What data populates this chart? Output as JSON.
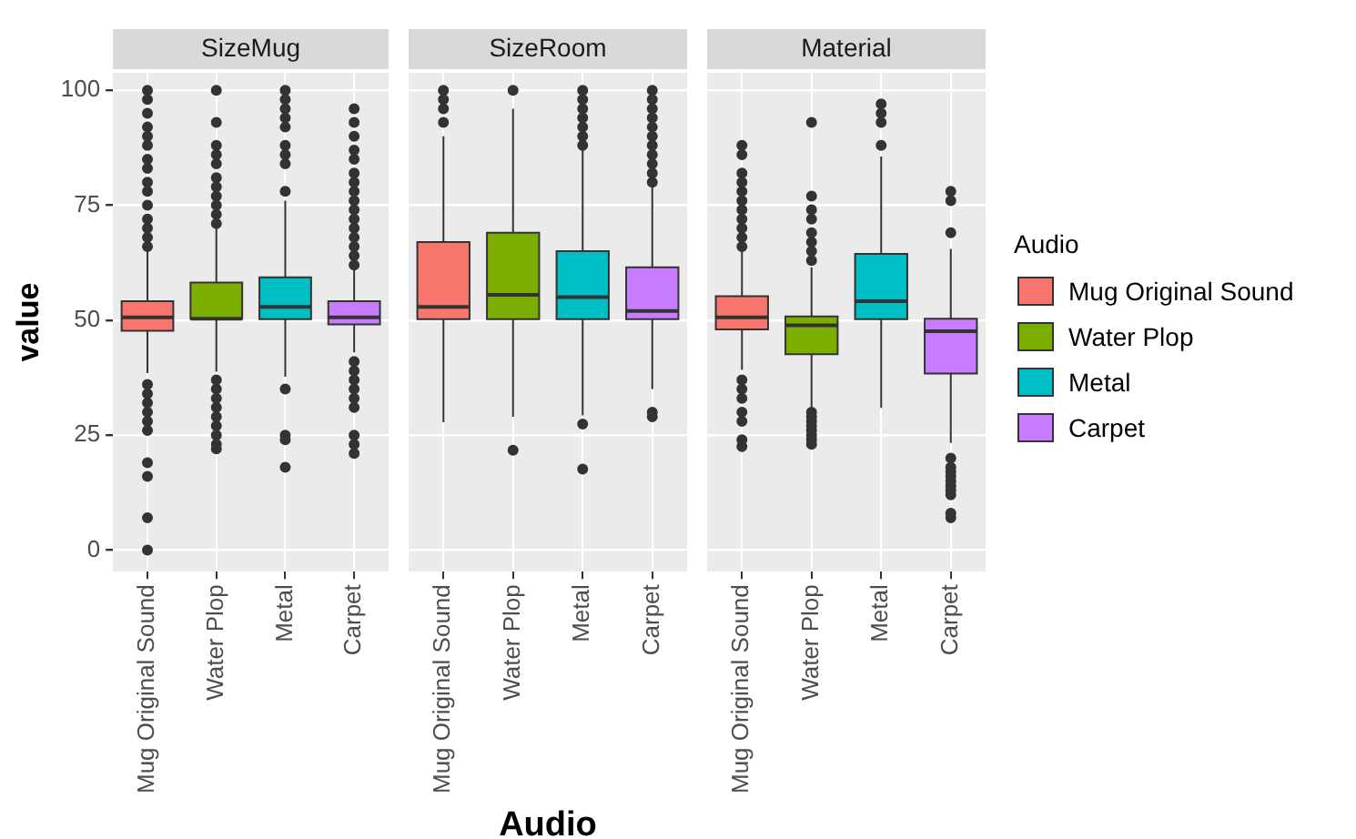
{
  "chart_data": [
    {
      "type": "box",
      "title": "SizeMug",
      "ylabel": "value",
      "categories": [
        "Mug Original Sound",
        "Water Plop",
        "Metal",
        "Carpet"
      ],
      "ylim": [
        -4.7,
        103.8
      ],
      "yticks": [
        0,
        25,
        50,
        75,
        100
      ],
      "grid": true,
      "legend": false,
      "series": [
        {
          "color": "#f8766d",
          "boxes": [
            {
              "low": 38.5,
              "q1": 47.7,
              "median": 50.6,
              "q3": 54.1,
              "high": 65,
              "outliers": [
                100,
                98,
                95,
                92,
                90,
                88,
                85,
                83,
                80,
                78,
                75,
                72,
                70,
                68,
                66,
                36,
                34,
                32,
                30,
                28,
                26,
                19,
                16,
                7,
                0
              ]
            },
            null,
            null,
            null
          ]
        },
        {
          "color": "#7cae00",
          "boxes": [
            null,
            {
              "low": 38.8,
              "q1": 50.3,
              "median": 50.3,
              "q3": 58.2,
              "high": 70,
              "outliers": [
                100,
                93,
                88,
                86,
                84,
                81,
                79,
                77,
                75,
                73,
                71,
                37,
                35,
                33,
                31,
                29,
                27,
                25,
                23,
                22
              ]
            },
            null,
            null
          ]
        },
        {
          "color": "#00bfc4",
          "boxes": [
            null,
            null,
            {
              "low": 37.7,
              "q1": 50.2,
              "median": 52.9,
              "q3": 59.3,
              "high": 76,
              "outliers": [
                100,
                98,
                96,
                94,
                92,
                88,
                86,
                84,
                78,
                35,
                25,
                24,
                18
              ]
            },
            null
          ]
        },
        {
          "color": "#c77cff",
          "boxes": [
            null,
            null,
            null,
            {
              "low": 43,
              "q1": 49.1,
              "median": 50.6,
              "q3": 54.1,
              "high": 61,
              "outliers": [
                96,
                93,
                90,
                87,
                85,
                82,
                80,
                78,
                76,
                74,
                72,
                70,
                68,
                66,
                64,
                62,
                41,
                39,
                37,
                35,
                33,
                31,
                25,
                23,
                21
              ]
            }
          ]
        }
      ]
    },
    {
      "type": "box",
      "title": "SizeRoom",
      "xlabel": "Audio",
      "categories": [
        "Mug Original Sound",
        "Water Plop",
        "Metal",
        "Carpet"
      ],
      "ylim": [
        -4.7,
        103.8
      ],
      "yticks": [
        0,
        25,
        50,
        75,
        100
      ],
      "grid": true,
      "legend": false,
      "tick_labels": "x",
      "series": [
        {
          "color": "#f8766d",
          "boxes": [
            {
              "low": 27.8,
              "q1": 50.2,
              "median": 52.9,
              "q3": 67,
              "high": 90,
              "outliers": [
                100,
                98,
                96,
                93
              ]
            },
            null,
            null,
            null
          ]
        },
        {
          "color": "#7cae00",
          "boxes": [
            null,
            {
              "low": 29,
              "q1": 50.2,
              "median": 55.5,
              "q3": 69,
              "high": 96,
              "outliers": [
                100,
                21.7
              ]
            },
            null,
            null
          ]
        },
        {
          "color": "#00bfc4",
          "boxes": [
            null,
            null,
            {
              "low": 29.3,
              "q1": 50.2,
              "median": 55,
              "q3": 65,
              "high": 87,
              "outliers": [
                100,
                98,
                96,
                94,
                92,
                90,
                88,
                27.4,
                17.6
              ]
            },
            null
          ]
        },
        {
          "color": "#c77cff",
          "boxes": [
            null,
            null,
            null,
            {
              "low": 35,
              "q1": 50.2,
              "median": 52,
              "q3": 61.5,
              "high": 79,
              "outliers": [
                100,
                98,
                96,
                94,
                92,
                90,
                88,
                86,
                84,
                82,
                80,
                30,
                29
              ]
            }
          ]
        }
      ]
    },
    {
      "type": "box",
      "title": "Material",
      "legend_title": "Audio",
      "categories": [
        "Mug Original Sound",
        "Water Plop",
        "Metal",
        "Carpet"
      ],
      "ylim": [
        -4.7,
        103.8
      ],
      "yticks": [
        0,
        25,
        50,
        75,
        100
      ],
      "grid": true,
      "legend": "right",
      "tick_labels": "x",
      "series": [
        {
          "name": "Mug Original Sound",
          "color": "#f8766d",
          "boxes": [
            {
              "low": 39.2,
              "q1": 48,
              "median": 50.6,
              "q3": 55.2,
              "high": 65,
              "outliers": [
                88,
                86,
                82,
                80,
                78,
                76,
                74,
                72,
                70,
                68,
                66,
                37,
                35,
                33,
                30,
                28,
                24,
                22.5
              ]
            },
            null,
            null,
            null
          ]
        },
        {
          "name": "Water Plop",
          "color": "#7cae00",
          "boxes": [
            null,
            {
              "low": 31,
              "q1": 42.6,
              "median": 48.9,
              "q3": 50.8,
              "high": 61.5,
              "outliers": [
                93,
                77,
                74,
                72,
                69,
                67,
                65,
                63,
                30,
                29,
                28,
                27,
                26,
                25,
                24,
                23
              ]
            },
            null,
            null
          ]
        },
        {
          "name": "Metal",
          "color": "#00bfc4",
          "boxes": [
            null,
            null,
            {
              "low": 30.9,
              "q1": 50.2,
              "median": 54.1,
              "q3": 64.4,
              "high": 85.6,
              "outliers": [
                97,
                95,
                93,
                88
              ]
            },
            null
          ]
        },
        {
          "name": "Carpet",
          "color": "#c77cff",
          "boxes": [
            null,
            null,
            null,
            {
              "low": 23.3,
              "q1": 38.4,
              "median": 47.6,
              "q3": 50.3,
              "high": 65.5,
              "outliers": [
                78,
                76,
                69,
                20,
                18,
                17,
                16,
                15,
                14,
                13,
                12,
                8,
                7
              ]
            }
          ]
        }
      ]
    }
  ]
}
